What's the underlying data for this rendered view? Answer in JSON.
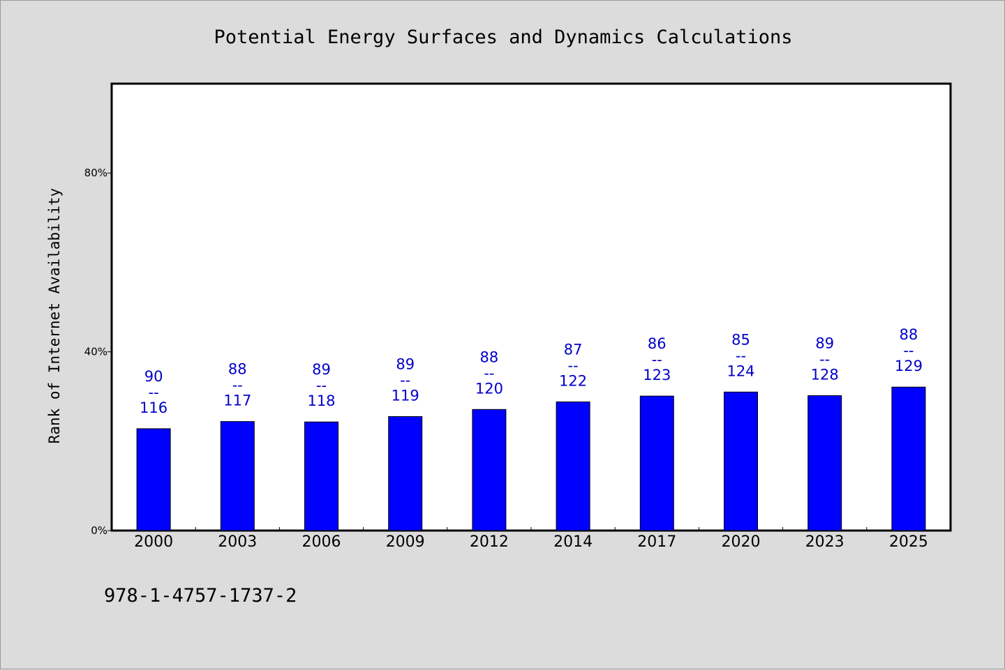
{
  "chart_data": {
    "type": "bar",
    "title": "Potential Energy Surfaces and Dynamics Calculations",
    "ylabel": "Rank of Internet Availability",
    "xlabel": "",
    "categories": [
      "2000",
      "2003",
      "2006",
      "2009",
      "2012",
      "2014",
      "2017",
      "2020",
      "2023",
      "2025"
    ],
    "values": [
      22.8,
      24.4,
      24.3,
      25.5,
      27.1,
      28.8,
      30.1,
      31.0,
      30.2,
      32.1
    ],
    "yticks": [
      "0%",
      "40%",
      "80%"
    ],
    "ytick_values": [
      0,
      40,
      80
    ],
    "ylim": [
      0,
      100
    ],
    "data_labels": [
      {
        "top": "90",
        "sep": "--",
        "bottom": "116"
      },
      {
        "top": "88",
        "sep": "--",
        "bottom": "117"
      },
      {
        "top": "89",
        "sep": "--",
        "bottom": "118"
      },
      {
        "top": "89",
        "sep": "--",
        "bottom": "119"
      },
      {
        "top": "88",
        "sep": "--",
        "bottom": "120"
      },
      {
        "top": "87",
        "sep": "--",
        "bottom": "122"
      },
      {
        "top": "86",
        "sep": "--",
        "bottom": "123"
      },
      {
        "top": "85",
        "sep": "--",
        "bottom": "124"
      },
      {
        "top": "89",
        "sep": "--",
        "bottom": "128"
      },
      {
        "top": "88",
        "sep": "--",
        "bottom": "129"
      }
    ],
    "grid": false,
    "legend": "none",
    "colors": {
      "bar": "#0000ff",
      "label": "#0000c8",
      "background": "#dcdcdc",
      "plot": "#ffffff"
    }
  },
  "footer": {
    "isbn": "978-1-4757-1737-2"
  }
}
